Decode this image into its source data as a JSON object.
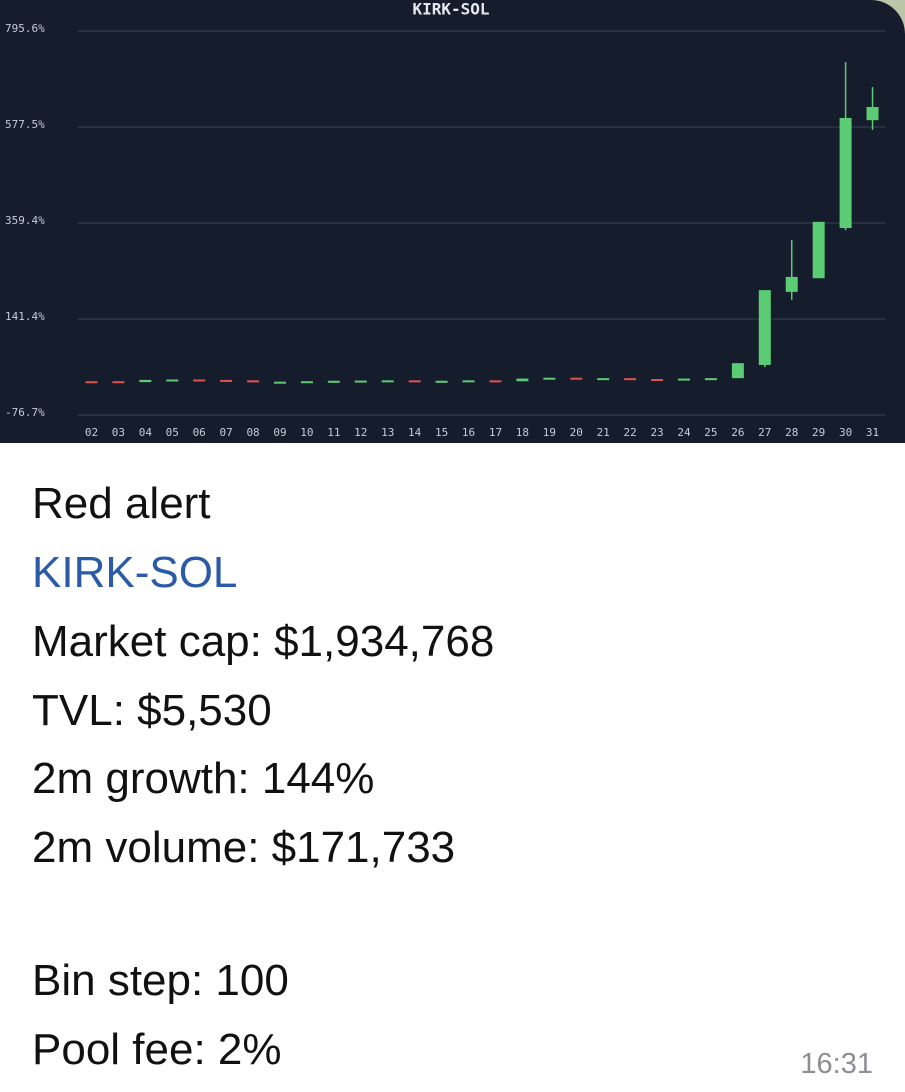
{
  "chart_data": {
    "type": "candlestick",
    "title": "KIRK-SOL",
    "categories": [
      "02",
      "03",
      "04",
      "05",
      "06",
      "07",
      "08",
      "09",
      "10",
      "11",
      "12",
      "13",
      "14",
      "15",
      "16",
      "17",
      "18",
      "19",
      "20",
      "21",
      "22",
      "23",
      "24",
      "25",
      "26",
      "27",
      "28",
      "29",
      "30",
      "31"
    ],
    "open": [
      0,
      0,
      -2,
      3,
      4,
      3,
      2,
      -2,
      -1,
      0,
      1,
      1.5,
      2,
      0,
      1,
      2,
      0,
      6,
      8,
      6,
      7,
      5,
      4,
      6,
      7,
      37,
      203,
      234,
      348,
      593
    ],
    "high": [
      0,
      0,
      3,
      4,
      4,
      3,
      2,
      -1,
      0,
      1,
      1.5,
      2,
      2,
      1,
      2,
      2,
      6,
      8,
      8,
      7,
      7,
      5,
      6,
      7,
      41,
      207,
      321,
      362,
      725,
      668
    ],
    "low": [
      -1,
      -2,
      -2,
      3,
      3,
      1,
      -1,
      -2,
      -1,
      0,
      1,
      1.5,
      0,
      0,
      1,
      0,
      0,
      6,
      6,
      6,
      5,
      4,
      4,
      6,
      7,
      32,
      185,
      234,
      343,
      571
    ],
    "close": [
      -1,
      -2,
      3,
      4,
      3,
      1,
      -1,
      -1,
      0,
      1,
      1.5,
      2,
      0,
      1,
      2,
      0,
      6,
      8,
      6,
      7,
      5,
      4,
      6,
      7,
      41,
      207,
      237,
      362,
      598,
      623
    ],
    "up_color": "#5ccc74",
    "down_color": "#e0524e",
    "ylim": [
      -76.7,
      795.6
    ],
    "yticks": [
      {
        "value": -76.7,
        "label": "-76.7%"
      },
      {
        "value": 141.4,
        "label": "141.4%"
      },
      {
        "value": 359.4,
        "label": "359.4%"
      },
      {
        "value": 577.5,
        "label": "577.5%"
      },
      {
        "value": 795.6,
        "label": "795.6%"
      }
    ],
    "grid": true
  },
  "message": {
    "title": "Red alert",
    "link": "KIRK-SOL",
    "lines": [
      "Market cap: $1,934,768",
      "TVL: $5,530",
      "2m growth: 144%",
      "2m volume: $171,733"
    ],
    "extra": [
      "Bin step: 100",
      "Pool fee: 2%"
    ],
    "time": "16:31"
  }
}
